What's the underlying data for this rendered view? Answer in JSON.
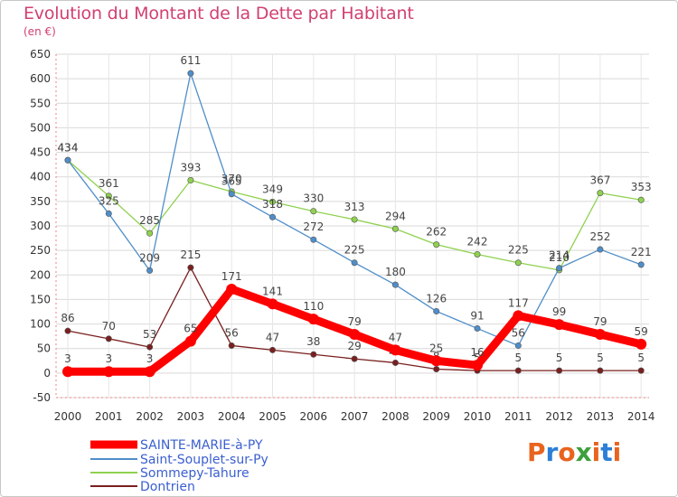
{
  "title": "Evolution du Montant de la Dette par Habitant",
  "unit_label": "(en €)",
  "logo": {
    "text": "Proxiti",
    "colors": [
      "#e8641e",
      "#2b7fd6",
      "#e8641e",
      "#3ca03c",
      "#e8641e",
      "#2b7fd6",
      "#e8641e"
    ]
  },
  "chart_data": {
    "type": "line",
    "title": "Evolution du Montant de la Dette par Habitant",
    "ylabel": "(en €)",
    "xlabel": "",
    "ylim": [
      -50,
      650
    ],
    "yticks": [
      -50,
      0,
      50,
      100,
      150,
      200,
      250,
      300,
      350,
      400,
      450,
      500,
      550,
      600,
      650
    ],
    "categories": [
      "2000",
      "2001",
      "2002",
      "2003",
      "2004",
      "2005",
      "2006",
      "2007",
      "2008",
      "2009",
      "2010",
      "2011",
      "2012",
      "2013",
      "2014"
    ],
    "grid": true,
    "legend_position": "bottom-left",
    "series": [
      {
        "name": "Dontrien",
        "color": "#7a1f1f",
        "values": [
          86,
          70,
          53,
          215,
          56,
          47,
          38,
          29,
          21,
          8,
          5,
          5,
          5,
          5,
          5
        ]
      },
      {
        "name": "Sommepy-Tahure",
        "color": "#8fd14f",
        "values": [
          434,
          361,
          285,
          393,
          370,
          349,
          330,
          313,
          294,
          262,
          242,
          225,
          210,
          367,
          353
        ]
      },
      {
        "name": "Saint-Souplet-sur-Py",
        "color": "#4f8ec9",
        "values": [
          434,
          325,
          209,
          611,
          365,
          318,
          272,
          225,
          180,
          126,
          91,
          56,
          214,
          252,
          221
        ]
      },
      {
        "name": "SAINTE-MARIE-à-PY",
        "color": "#ff0000",
        "values": [
          3,
          3,
          3,
          65,
          171,
          141,
          110,
          79,
          47,
          25,
          16,
          117,
          99,
          79,
          59
        ]
      }
    ]
  }
}
